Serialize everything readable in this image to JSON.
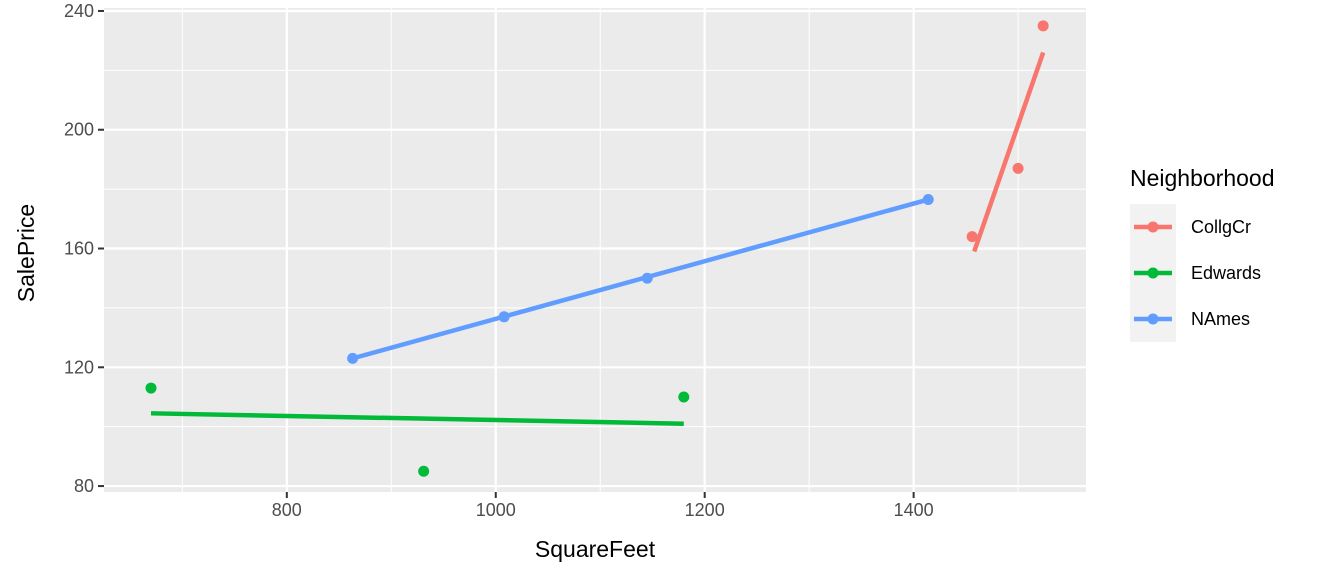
{
  "chart_data": {
    "type": "scatter",
    "title": "",
    "xlabel": "SquareFeet",
    "ylabel": "SalePrice",
    "xlim": [
      625,
      1565
    ],
    "ylim": [
      78,
      241
    ],
    "x_ticks": [
      800,
      1000,
      1200,
      1400
    ],
    "y_ticks": [
      80,
      120,
      160,
      200,
      240
    ],
    "grid": true,
    "legend": {
      "title": "Neighborhood",
      "position": "right"
    },
    "series": [
      {
        "name": "CollgCr",
        "color": "#F8766D",
        "points": [
          [
            1456,
            164
          ],
          [
            1500,
            187
          ],
          [
            1524,
            235
          ]
        ],
        "fit": [
          [
            1458,
            159
          ],
          [
            1524,
            226
          ]
        ]
      },
      {
        "name": "Edwards",
        "color": "#00BA38",
        "points": [
          [
            670,
            113
          ],
          [
            931,
            85
          ],
          [
            1180,
            110
          ]
        ],
        "fit": [
          [
            670,
            104.5
          ],
          [
            1180,
            101
          ]
        ]
      },
      {
        "name": "NAmes",
        "color": "#619CFF",
        "points": [
          [
            863,
            123
          ],
          [
            1008,
            137
          ],
          [
            1145,
            150
          ],
          [
            1414,
            176.5
          ]
        ],
        "fit": [
          [
            863,
            123
          ],
          [
            1414,
            176.5
          ]
        ]
      }
    ]
  }
}
